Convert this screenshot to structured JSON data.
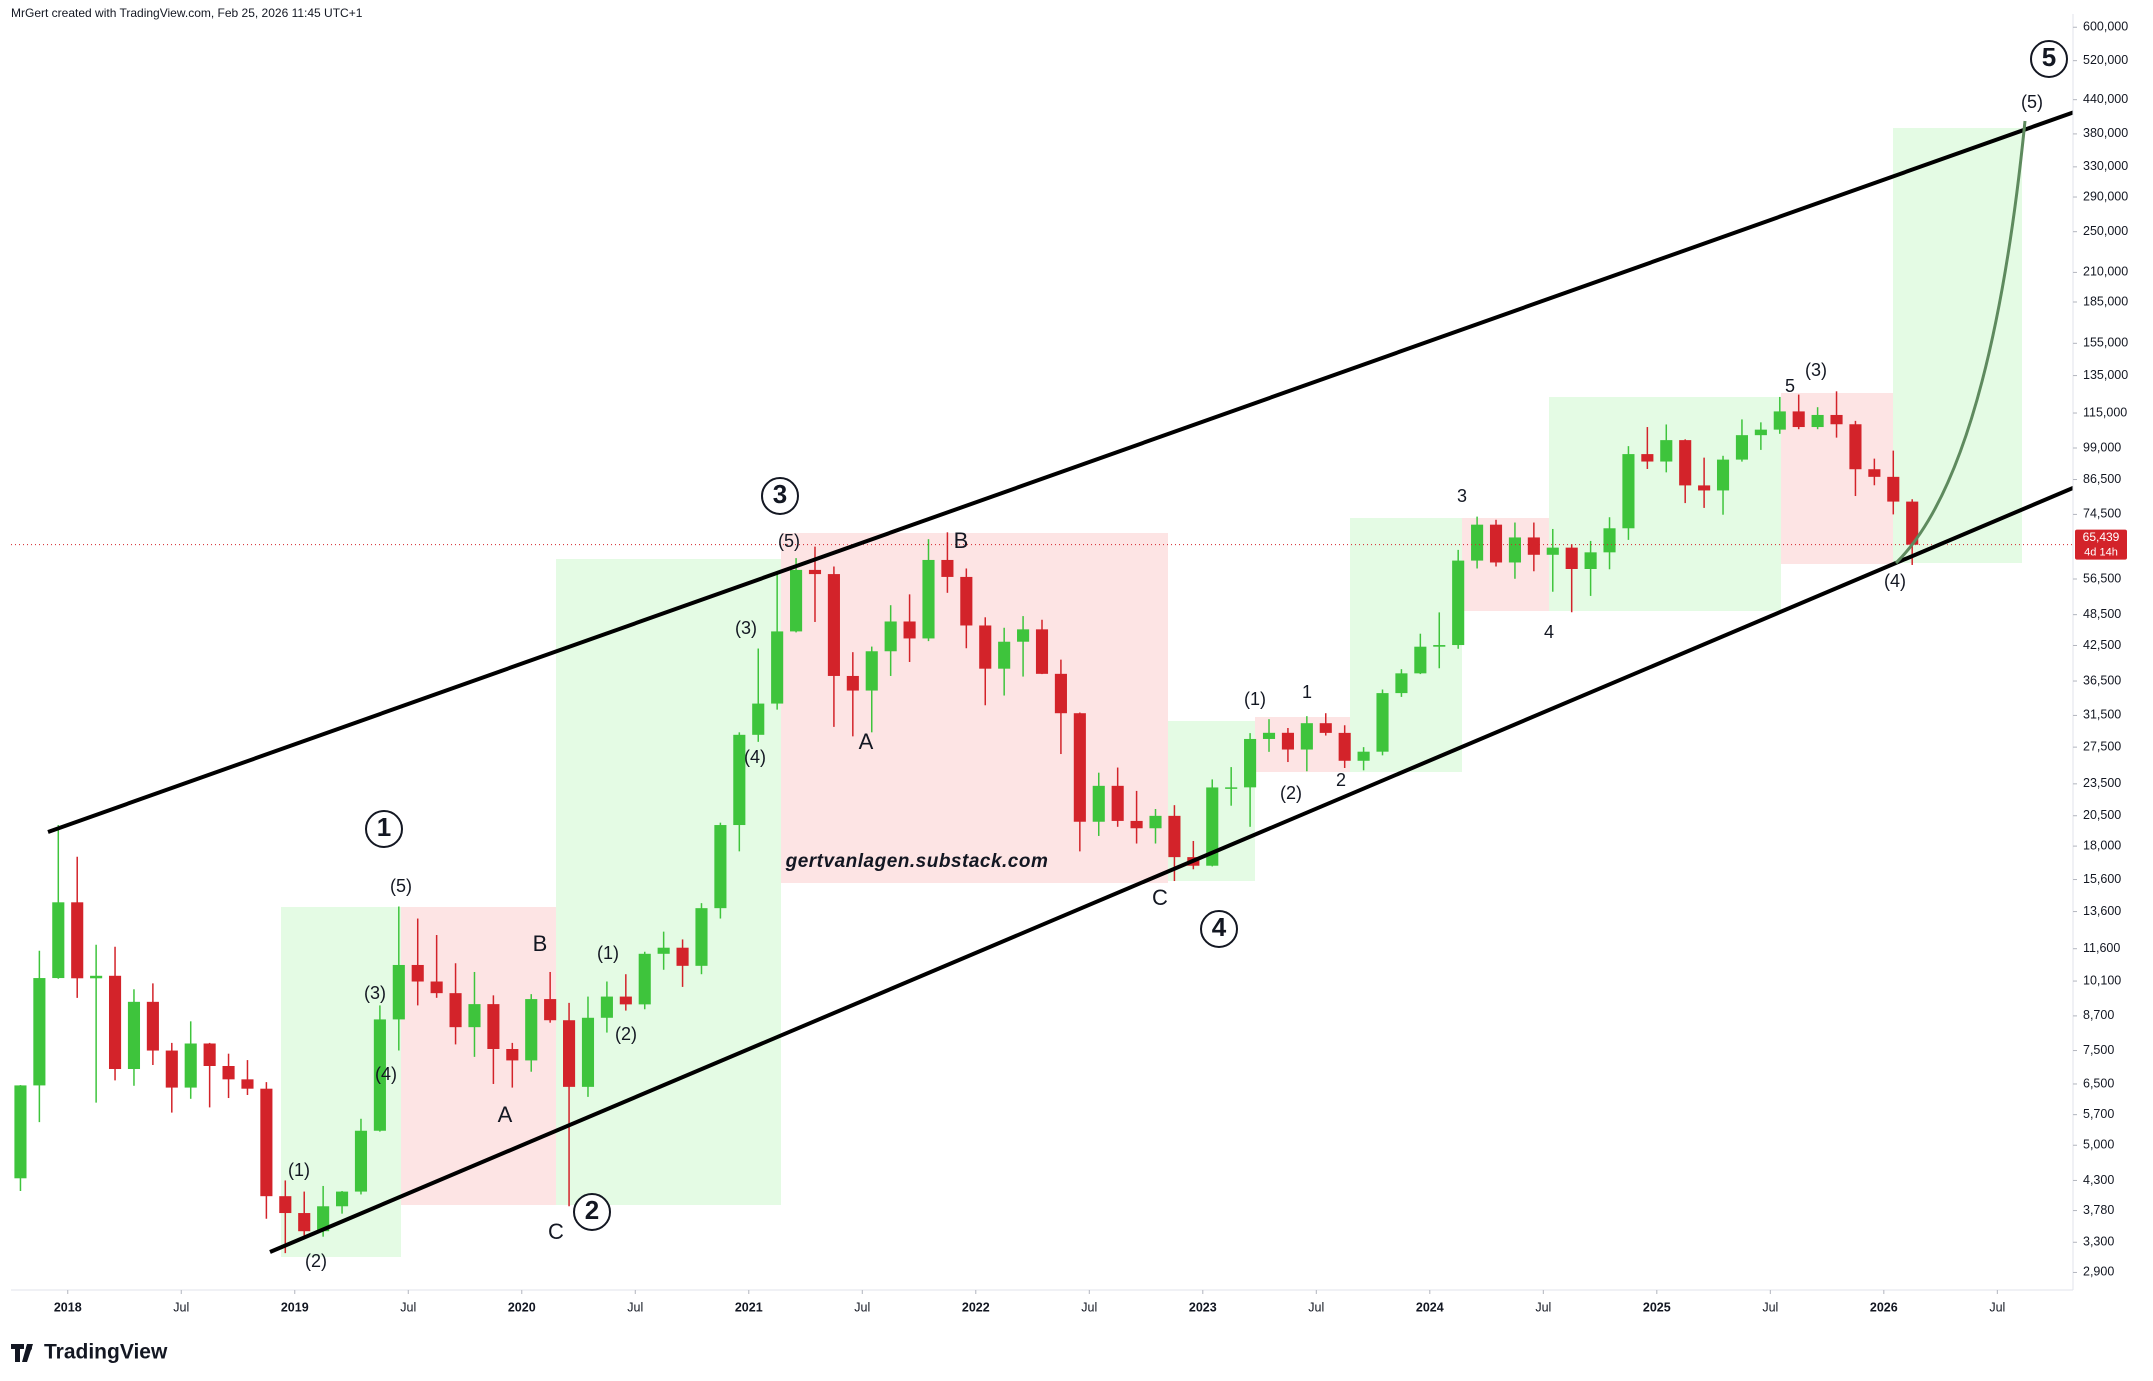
{
  "header": "MrGert created with TradingView.com, Feb 25, 2026 11:45 UTC+1",
  "footer": "TradingView",
  "chart_data": {
    "type": "candlestick",
    "log_scale": true,
    "up_color": "#3ec43c",
    "down_color": "#d3232a",
    "x": [
      "2017-10",
      "2017-11",
      "2017-12",
      "2018-01",
      "2018-02",
      "2018-03",
      "2018-04",
      "2018-05",
      "2018-06",
      "2018-07",
      "2018-08",
      "2018-09",
      "2018-10",
      "2018-11",
      "2018-12",
      "2019-01",
      "2019-02",
      "2019-03",
      "2019-04",
      "2019-05",
      "2019-06",
      "2019-07",
      "2019-08",
      "2019-09",
      "2019-10",
      "2019-11",
      "2019-12",
      "2020-01",
      "2020-02",
      "2020-03",
      "2020-04",
      "2020-05",
      "2020-06",
      "2020-07",
      "2020-08",
      "2020-09",
      "2020-10",
      "2020-11",
      "2020-12",
      "2021-01",
      "2021-02",
      "2021-03",
      "2021-04",
      "2021-05",
      "2021-06",
      "2021-07",
      "2021-08",
      "2021-09",
      "2021-10",
      "2021-11",
      "2021-12",
      "2022-01",
      "2022-02",
      "2022-03",
      "2022-04",
      "2022-05",
      "2022-06",
      "2022-07",
      "2022-08",
      "2022-09",
      "2022-10",
      "2022-11",
      "2022-12",
      "2023-01",
      "2023-02",
      "2023-03",
      "2023-04",
      "2023-05",
      "2023-06",
      "2023-07",
      "2023-08",
      "2023-09",
      "2023-10",
      "2023-11",
      "2023-12",
      "2024-01",
      "2024-02",
      "2024-03",
      "2024-04",
      "2024-05",
      "2024-06",
      "2024-07",
      "2024-08",
      "2024-09",
      "2024-10",
      "2024-11",
      "2024-12",
      "2025-01",
      "2025-02",
      "2025-03",
      "2025-04",
      "2025-05",
      "2025-06",
      "2025-07",
      "2025-08",
      "2025-09",
      "2025-10",
      "2025-11",
      "2025-12",
      "2026-01",
      "2026-02"
    ],
    "open": [
      4340,
      6460,
      10230,
      14150,
      10220,
      10330,
      6930,
      9240,
      7500,
      6400,
      7730,
      7020,
      6630,
      6370,
      4020,
      3740,
      3460,
      3850,
      4100,
      5320,
      8570,
      10820,
      10080,
      9590,
      8290,
      9150,
      7550,
      7190,
      9350,
      8540,
      6420,
      8630,
      9450,
      9140,
      11350,
      11650,
      10780,
      13800,
      19700,
      28990,
      33140,
      45140,
      58740,
      57700,
      37300,
      35040,
      41460,
      47100,
      43800,
      61300,
      57000,
      46300,
      38480,
      43190,
      45540,
      37640,
      31800,
      19980,
      23300,
      20050,
      19430,
      20490,
      17170,
      16550,
      23140,
      23150,
      28480,
      29240,
      27220,
      30470,
      29230,
      25940,
      26970,
      34660,
      37720,
      42280,
      42580,
      61130,
      71300,
      60640,
      67500,
      62670,
      64620,
      58970,
      63330,
      70200,
      96450,
      93430,
      102400,
      84350,
      82550,
      94200,
      104600,
      107100,
      115800,
      108300,
      114050,
      109600,
      90400,
      87500,
      78700
    ],
    "high": [
      6470,
      11500,
      19700,
      17200,
      11800,
      11700,
      9750,
      10000,
      7750,
      8500,
      7750,
      7400,
      7200,
      6550,
      4300,
      4100,
      4200,
      4110,
      5600,
      9100,
      13900,
      13200,
      12300,
      10900,
      10500,
      9500,
      7750,
      9550,
      10500,
      9200,
      9450,
      10080,
      10400,
      11450,
      12480,
      12070,
      14100,
      19900,
      29300,
      41950,
      58350,
      61780,
      64900,
      59600,
      41300,
      42300,
      50500,
      52900,
      67000,
      69000,
      59100,
      47950,
      45850,
      48200,
      47450,
      40000,
      31900,
      24650,
      25200,
      22800,
      21100,
      21450,
      18400,
      23950,
      25250,
      29200,
      31000,
      29850,
      31400,
      31800,
      30200,
      27500,
      35200,
      38400,
      44700,
      48970,
      64000,
      73800,
      72800,
      71950,
      71950,
      70000,
      65600,
      66500,
      73600,
      99800,
      108300,
      109500,
      102750,
      95000,
      95750,
      111900,
      110500,
      123200,
      124450,
      117900,
      126200,
      111200,
      94600,
      97900,
      79500
    ],
    "low": [
      4110,
      5520,
      10200,
      9400,
      6000,
      6600,
      6450,
      7050,
      5750,
      6100,
      5880,
      6120,
      6200,
      3650,
      3150,
      3350,
      3380,
      3730,
      4050,
      5300,
      7500,
      9100,
      9400,
      7700,
      7300,
      6500,
      6400,
      6850,
      8450,
      3850,
      6150,
      8100,
      8900,
      8950,
      10600,
      9850,
      10400,
      13200,
      17600,
      28130,
      32300,
      44950,
      47000,
      30000,
      28800,
      29300,
      37300,
      39600,
      43300,
      53250,
      42000,
      32900,
      34300,
      37200,
      37600,
      26700,
      17600,
      18800,
      19550,
      18200,
      18200,
      15500,
      16300,
      16500,
      21400,
      19550,
      26950,
      25800,
      24800,
      28900,
      25150,
      24900,
      26550,
      34100,
      37600,
      38550,
      41900,
      59100,
      59600,
      56550,
      58400,
      53500,
      49000,
      52550,
      58900,
      66800,
      90500,
      89200,
      78200,
      76600,
      74400,
      93400,
      98200,
      105200,
      107300,
      107300,
      103500,
      80600,
      84400,
      74500,
      60000
    ],
    "close": [
      6460,
      10230,
      14150,
      10220,
      10330,
      6930,
      9240,
      7500,
      6400,
      7730,
      7020,
      6630,
      6370,
      4020,
      3740,
      3460,
      3850,
      4100,
      5320,
      8570,
      10820,
      10080,
      9590,
      8290,
      9150,
      7550,
      7190,
      9350,
      8540,
      6420,
      8630,
      9450,
      9140,
      11350,
      11650,
      10780,
      13800,
      19700,
      28990,
      33140,
      45140,
      58740,
      57700,
      37300,
      35040,
      41460,
      47100,
      43800,
      61300,
      57000,
      46300,
      38480,
      43190,
      45540,
      37640,
      31800,
      19980,
      23300,
      20050,
      19430,
      20490,
      17170,
      16550,
      23140,
      23150,
      28480,
      29240,
      27220,
      30470,
      29230,
      25940,
      26970,
      34660,
      37720,
      42280,
      42580,
      61130,
      71300,
      60640,
      67500,
      62670,
      64620,
      58970,
      63330,
      70200,
      96450,
      93430,
      102400,
      84350,
      82550,
      94200,
      104600,
      107100,
      115800,
      108300,
      114050,
      109600,
      90400,
      87500,
      78700,
      65439
    ],
    "xlim": [
      "2017-10",
      "2026-11"
    ],
    "xticks": [
      {
        "value": "2018-01",
        "label": "2018"
      },
      {
        "value": "2018-07",
        "label": "Jul"
      },
      {
        "value": "2019-01",
        "label": "2019"
      },
      {
        "value": "2019-07",
        "label": "Jul"
      },
      {
        "value": "2020-01",
        "label": "2020"
      },
      {
        "value": "2020-07",
        "label": "Jul"
      },
      {
        "value": "2021-01",
        "label": "2021"
      },
      {
        "value": "2021-07",
        "label": "Jul"
      },
      {
        "value": "2022-01",
        "label": "2022"
      },
      {
        "value": "2022-07",
        "label": "Jul"
      },
      {
        "value": "2023-01",
        "label": "2023"
      },
      {
        "value": "2023-07",
        "label": "Jul"
      },
      {
        "value": "2024-01",
        "label": "2024"
      },
      {
        "value": "2024-07",
        "label": "Jul"
      },
      {
        "value": "2025-01",
        "label": "2025"
      },
      {
        "value": "2025-07",
        "label": "Jul"
      },
      {
        "value": "2026-01",
        "label": "2026"
      },
      {
        "value": "2026-07",
        "label": "Jul"
      }
    ],
    "ylim": [
      2690,
      635000
    ],
    "yticks": [
      {
        "value": 600000,
        "label": "600,000"
      },
      {
        "value": 520000,
        "label": "520,000"
      },
      {
        "value": 440000,
        "label": "440,000"
      },
      {
        "value": 380000,
        "label": "380,000"
      },
      {
        "value": 330000,
        "label": "330,000"
      },
      {
        "value": 290000,
        "label": "290,000"
      },
      {
        "value": 250000,
        "label": "250,000"
      },
      {
        "value": 210000,
        "label": "210,000"
      },
      {
        "value": 185000,
        "label": "185,000"
      },
      {
        "value": 155000,
        "label": "155,000"
      },
      {
        "value": 135000,
        "label": "135,000"
      },
      {
        "value": 115000,
        "label": "115,000"
      },
      {
        "value": 99000,
        "label": "99,000"
      },
      {
        "value": 86500,
        "label": "86,500"
      },
      {
        "value": 74500,
        "label": "74,500"
      },
      {
        "value": 56500,
        "label": "56,500"
      },
      {
        "value": 48500,
        "label": "48,500"
      },
      {
        "value": 42500,
        "label": "42,500"
      },
      {
        "value": 36500,
        "label": "36,500"
      },
      {
        "value": 31500,
        "label": "31,500"
      },
      {
        "value": 27500,
        "label": "27,500"
      },
      {
        "value": 23500,
        "label": "23,500"
      },
      {
        "value": 20500,
        "label": "20,500"
      },
      {
        "value": 18000,
        "label": "18,000"
      },
      {
        "value": 15600,
        "label": "15,600"
      },
      {
        "value": 13600,
        "label": "13,600"
      },
      {
        "value": 11600,
        "label": "11,600"
      },
      {
        "value": 10100,
        "label": "10,100"
      },
      {
        "value": 8700,
        "label": "8,700"
      },
      {
        "value": 7500,
        "label": "7,500"
      },
      {
        "value": 6500,
        "label": "6,500"
      },
      {
        "value": 5700,
        "label": "5,700"
      },
      {
        "value": 5000,
        "label": "5,000"
      },
      {
        "value": 4300,
        "label": "4,300"
      },
      {
        "value": 3780,
        "label": "3,780"
      },
      {
        "value": 3300,
        "label": "3,300"
      },
      {
        "value": 2900,
        "label": "2,900"
      }
    ],
    "price_label": {
      "value": 65439,
      "label": "65,439"
    },
    "countdown": "4d 14h",
    "annotations": [
      {
        "text": "1",
        "circled": true
      },
      {
        "text": "(5)"
      },
      {
        "text": "(3)"
      },
      {
        "text": "(4)"
      },
      {
        "text": "(1)"
      },
      {
        "text": "(2)"
      },
      {
        "text": "B"
      },
      {
        "text": "A"
      },
      {
        "text": "C"
      },
      {
        "text": "2",
        "circled": true
      },
      {
        "text": "(1)"
      },
      {
        "text": "(2)"
      },
      {
        "text": "3",
        "circled": true
      },
      {
        "text": "(5)"
      },
      {
        "text": "(3)"
      },
      {
        "text": "(4)"
      },
      {
        "text": "A"
      },
      {
        "text": "B"
      },
      {
        "text": "C"
      },
      {
        "text": "4",
        "circled": true
      },
      {
        "text": "(1)"
      },
      {
        "text": "(2)"
      },
      {
        "text": "1"
      },
      {
        "text": "2"
      },
      {
        "text": "3"
      },
      {
        "text": "4"
      },
      {
        "text": "5"
      },
      {
        "text": "(3)"
      },
      {
        "text": "(4)"
      },
      {
        "text": "(5)"
      },
      {
        "text": "5",
        "circled": true
      },
      {
        "text": "gertvanlagen.substack.com"
      }
    ]
  }
}
